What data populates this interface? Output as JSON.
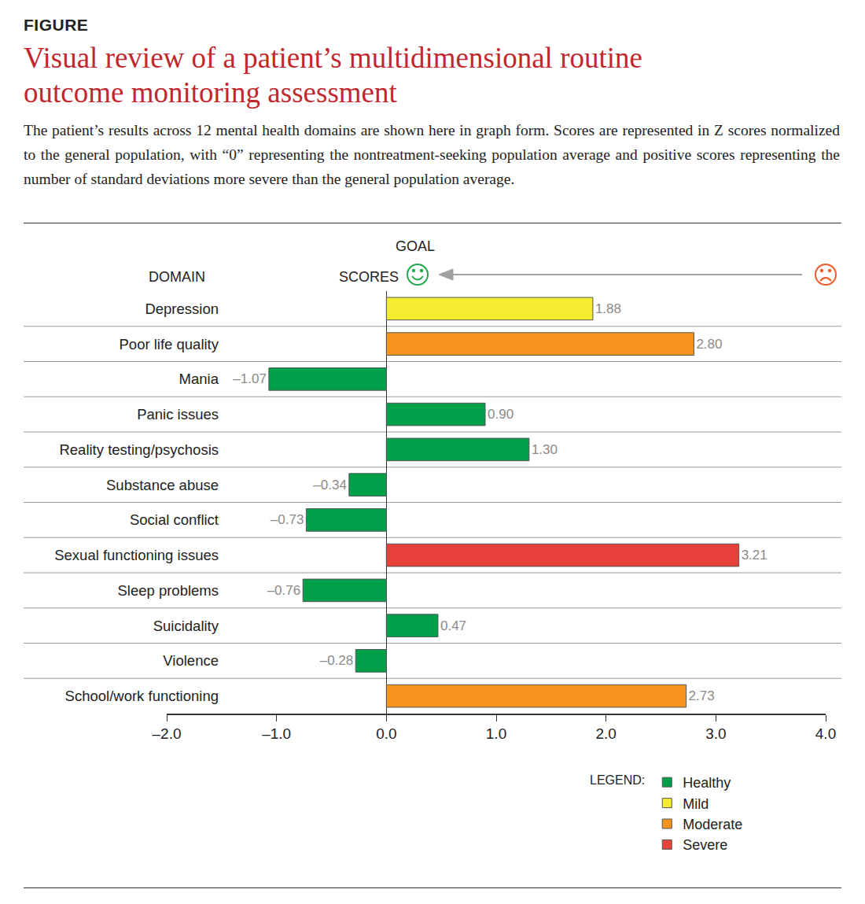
{
  "chart_data": {
    "type": "bar",
    "orientation": "horizontal",
    "figure_label": "FIGURE",
    "title": "Visual review of a patient’s multidimensional routine outcome monitoring assessment",
    "subtitle": "The patient’s results across 12 mental health domains are shown here in graph form. Scores are represented in Z scores normalized to the general population, with “0” representing the nontreatment-seeking population average and positive scores representing the number of standard deviations more severe than the general population average.",
    "annotations": {
      "category_header": "DOMAIN",
      "value_header": "SCORES",
      "goal": "GOAL"
    },
    "legend_title": "LEGEND:",
    "legend": "bottom right",
    "grid": false,
    "data_labels": true,
    "categories": [
      "Depression",
      "Poor life quality",
      "Mania",
      "Panic issues",
      "Reality testing/psychosis",
      "Substance abuse",
      "Social conflict",
      "Sexual functioning issues",
      "Sleep problems",
      "Suicidality",
      "Violence",
      "School/work functioning"
    ],
    "series": [
      {
        "name": "Healthy",
        "color": "#00a04b",
        "values": [
          null,
          null,
          -1.07,
          0.9,
          1.3,
          -0.34,
          -0.73,
          null,
          -0.76,
          0.47,
          -0.28,
          null
        ],
        "value_labels": [
          null,
          null,
          "–1.07",
          "0.90",
          "1.30",
          "–0.34",
          "–0.73",
          null,
          "–0.76",
          "0.47",
          "–0.28",
          null
        ]
      },
      {
        "name": "Mild",
        "color": "#f5eb2f",
        "values": [
          1.88,
          null,
          null,
          null,
          null,
          null,
          null,
          null,
          null,
          null,
          null,
          null
        ],
        "value_labels": [
          "1.88",
          null,
          null,
          null,
          null,
          null,
          null,
          null,
          null,
          null,
          null,
          null
        ]
      },
      {
        "name": "Moderate",
        "color": "#f7941d",
        "values": [
          null,
          2.8,
          null,
          null,
          null,
          null,
          null,
          null,
          null,
          null,
          null,
          2.73
        ],
        "value_labels": [
          null,
          "2.80",
          null,
          null,
          null,
          null,
          null,
          null,
          null,
          null,
          null,
          "2.73"
        ]
      },
      {
        "name": "Severe",
        "color": "#e8403a",
        "values": [
          null,
          null,
          null,
          null,
          null,
          null,
          null,
          3.21,
          null,
          null,
          null,
          null
        ],
        "value_labels": [
          null,
          null,
          null,
          null,
          null,
          null,
          null,
          "3.21",
          null,
          null,
          null,
          null
        ]
      }
    ],
    "xlim": [
      -2,
      4
    ],
    "xticks": [
      {
        "value": -2,
        "label": "–2.0"
      },
      {
        "value": -1,
        "label": "–1.0"
      },
      {
        "value": 0,
        "label": "0.0"
      },
      {
        "value": 1,
        "label": "1.0"
      },
      {
        "value": 2,
        "label": "2.0"
      },
      {
        "value": 3,
        "label": "3.0"
      },
      {
        "value": 4,
        "label": "4.0"
      }
    ]
  }
}
